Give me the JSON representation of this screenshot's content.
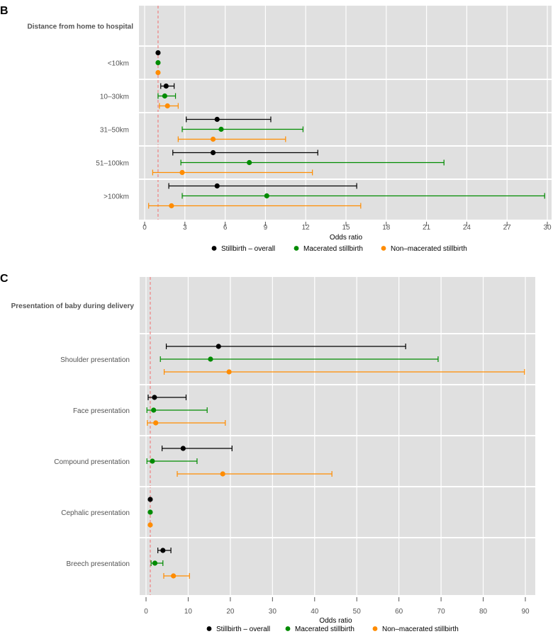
{
  "chart_data": [
    {
      "type": "forest",
      "panel": "B",
      "group_title": "Distance from home to hospital",
      "xlabel": "Odds ratio",
      "xlim": [
        0,
        30
      ],
      "xticks": [
        0,
        3,
        6,
        9,
        12,
        15,
        18,
        21,
        24,
        27,
        30
      ],
      "reference_line": 1,
      "categories": [
        "<10km",
        "10–30km",
        "31–50km",
        "51–100km",
        ">100km"
      ],
      "series": [
        {
          "name": "Stillbirth – overall",
          "color": "#000000",
          "values": [
            {
              "or": 1,
              "lo": 1,
              "hi": 1
            },
            {
              "or": 1.6,
              "lo": 1.2,
              "hi": 2.2
            },
            {
              "or": 5.4,
              "lo": 3.1,
              "hi": 9.4
            },
            {
              "or": 5.1,
              "lo": 2.1,
              "hi": 12.9
            },
            {
              "or": 5.4,
              "lo": 1.8,
              "hi": 15.8
            }
          ]
        },
        {
          "name": "Macerated stillbirth",
          "color": "#008B00",
          "values": [
            {
              "or": 1,
              "lo": 1,
              "hi": 1
            },
            {
              "or": 1.5,
              "lo": 1.0,
              "hi": 2.3
            },
            {
              "or": 5.7,
              "lo": 2.8,
              "hi": 11.8
            },
            {
              "or": 7.8,
              "lo": 2.7,
              "hi": 22.3
            },
            {
              "or": 9.1,
              "lo": 2.8,
              "hi": 29.8
            }
          ]
        },
        {
          "name": "Non–macerated stillbirth",
          "color": "#FF8C00",
          "values": [
            {
              "or": 1,
              "lo": 1,
              "hi": 1
            },
            {
              "or": 1.7,
              "lo": 1.1,
              "hi": 2.5
            },
            {
              "or": 5.1,
              "lo": 2.5,
              "hi": 10.5
            },
            {
              "or": 2.8,
              "lo": 0.6,
              "hi": 12.5
            },
            {
              "or": 2.0,
              "lo": 0.3,
              "hi": 16.1
            }
          ]
        }
      ],
      "legend": "bottom"
    },
    {
      "type": "forest",
      "panel": "C",
      "group_title": "Presentation of baby during delivery",
      "xlabel": "Odds ratio",
      "xlim": [
        0,
        90
      ],
      "xticks": [
        0,
        10,
        20,
        30,
        40,
        50,
        60,
        70,
        80,
        90
      ],
      "reference_line": 1,
      "categories": [
        "Shoulder presentation",
        "Face presentation",
        "Compound presentation",
        "Cephalic presentation",
        "Breech presentation"
      ],
      "series": [
        {
          "name": "Stillbirth – overall",
          "color": "#000000",
          "values": [
            {
              "or": 17.2,
              "lo": 4.8,
              "hi": 61.6
            },
            {
              "or": 2.0,
              "lo": 0.5,
              "hi": 9.5
            },
            {
              "or": 8.8,
              "lo": 3.8,
              "hi": 20.4
            },
            {
              "or": 1,
              "lo": 1,
              "hi": 1
            },
            {
              "or": 4.0,
              "lo": 2.8,
              "hi": 5.9
            }
          ]
        },
        {
          "name": "Macerated stillbirth",
          "color": "#008B00",
          "values": [
            {
              "or": 15.3,
              "lo": 3.4,
              "hi": 69.3
            },
            {
              "or": 1.8,
              "lo": 0.2,
              "hi": 14.5
            },
            {
              "or": 1.5,
              "lo": 0.2,
              "hi": 12.1
            },
            {
              "or": 1,
              "lo": 1,
              "hi": 1
            },
            {
              "or": 2.1,
              "lo": 1.2,
              "hi": 4.0
            }
          ]
        },
        {
          "name": "Non–macerated stillbirth",
          "color": "#FF8C00",
          "values": [
            {
              "or": 19.7,
              "lo": 4.3,
              "hi": 89.8
            },
            {
              "or": 2.3,
              "lo": 0.3,
              "hi": 18.8
            },
            {
              "or": 18.2,
              "lo": 7.4,
              "hi": 44.1
            },
            {
              "or": 1,
              "lo": 1,
              "hi": 1
            },
            {
              "or": 6.5,
              "lo": 4.2,
              "hi": 10.3
            }
          ]
        }
      ],
      "legend": "bottom"
    }
  ]
}
